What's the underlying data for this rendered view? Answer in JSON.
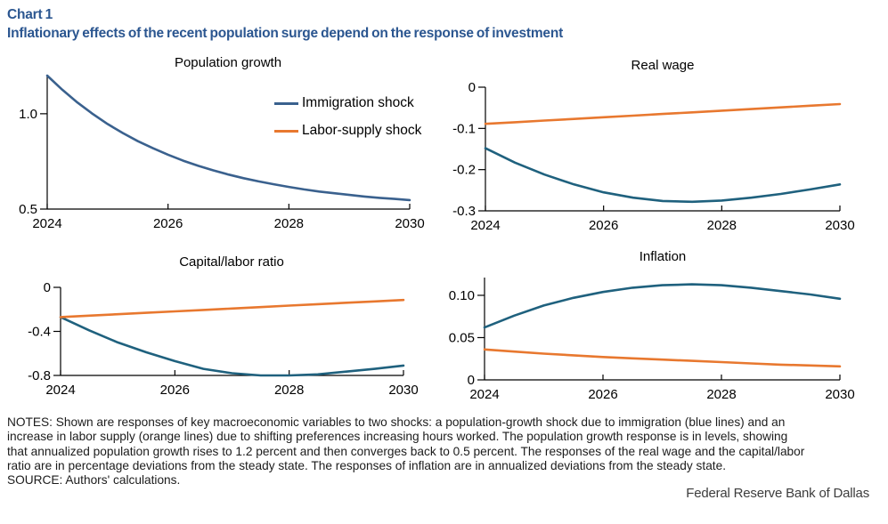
{
  "header": {
    "chart_label": "Chart 1",
    "title": "Inflationary effects of the recent population surge depend on the response of investment"
  },
  "legend": {
    "items": [
      {
        "label": "Immigration shock",
        "color": "#3a618e"
      },
      {
        "label": "Labor-supply shock",
        "color": "#e8782f"
      }
    ]
  },
  "colors": {
    "header_blue": "#2b5690",
    "immigration_blue": "#3a618e",
    "immigration_teal": "#1f617e",
    "labor_orange": "#e8782f",
    "axis_black": "#000000"
  },
  "chart_data": [
    {
      "type": "line",
      "title": "Population growth",
      "xlabel": "",
      "ylabel": "",
      "xlim": [
        2024,
        2030
      ],
      "ylim": [
        0.5,
        1.2
      ],
      "xtick_values": [
        2024,
        2026,
        2028,
        2030
      ],
      "xtick_labels": [
        "2024",
        "2026",
        "2028",
        "2030"
      ],
      "ytick_values": [
        1.0,
        0.5
      ],
      "ytick_labels": [
        "1.0",
        "0.5"
      ],
      "grid": false,
      "series": [
        {
          "name": "Immigration shock",
          "color": "#3a618e",
          "x": [
            2024,
            2024.25,
            2024.5,
            2024.75,
            2025,
            2025.25,
            2025.5,
            2025.75,
            2026,
            2026.25,
            2026.5,
            2026.75,
            2027,
            2027.25,
            2027.5,
            2027.75,
            2028,
            2028.25,
            2028.5,
            2028.75,
            2029,
            2029.25,
            2029.5,
            2029.75,
            2030
          ],
          "y": [
            1.2,
            1.126,
            1.059,
            1.0,
            0.946,
            0.899,
            0.856,
            0.819,
            0.785,
            0.754,
            0.727,
            0.703,
            0.681,
            0.662,
            0.645,
            0.63,
            0.616,
            0.603,
            0.592,
            0.583,
            0.574,
            0.566,
            0.559,
            0.553,
            0.547
          ]
        }
      ]
    },
    {
      "type": "line",
      "title": "Real wage",
      "xlabel": "",
      "ylabel": "",
      "xlim": [
        2024,
        2030
      ],
      "ylim": [
        -0.3,
        0
      ],
      "xtick_values": [
        2024,
        2026,
        2028,
        2030
      ],
      "xtick_labels": [
        "2024",
        "2026",
        "2028",
        "2030"
      ],
      "ytick_values": [
        0,
        -0.1,
        -0.2,
        -0.3
      ],
      "ytick_labels": [
        "0",
        "-0.1",
        "-0.2",
        "-0.3"
      ],
      "grid": false,
      "series": [
        {
          "name": "Immigration shock",
          "color": "#1f617e",
          "x": [
            2024,
            2024.5,
            2025,
            2025.5,
            2026,
            2026.5,
            2027,
            2027.5,
            2028,
            2028.5,
            2029,
            2029.5,
            2030
          ],
          "y": [
            -0.148,
            -0.183,
            -0.212,
            -0.236,
            -0.255,
            -0.268,
            -0.276,
            -0.278,
            -0.275,
            -0.268,
            -0.259,
            -0.248,
            -0.236
          ]
        },
        {
          "name": "Labor-supply shock",
          "color": "#e8782f",
          "x": [
            2024,
            2024.5,
            2025,
            2025.5,
            2026,
            2026.5,
            2027,
            2027.5,
            2028,
            2028.5,
            2029,
            2029.5,
            2030
          ],
          "y": [
            -0.089,
            -0.085,
            -0.081,
            -0.077,
            -0.073,
            -0.069,
            -0.065,
            -0.061,
            -0.057,
            -0.053,
            -0.049,
            -0.045,
            -0.041
          ]
        }
      ]
    },
    {
      "type": "line",
      "title": "Capital/labor ratio",
      "xlabel": "",
      "ylabel": "",
      "xlim": [
        2024,
        2030
      ],
      "ylim": [
        -0.8,
        0
      ],
      "xtick_values": [
        2024,
        2026,
        2028,
        2030
      ],
      "xtick_labels": [
        "2024",
        "2026",
        "2028",
        "2030"
      ],
      "ytick_values": [
        0,
        -0.4,
        -0.8
      ],
      "ytick_labels": [
        "0",
        "-0.4",
        "-0.8"
      ],
      "grid": false,
      "series": [
        {
          "name": "Immigration shock",
          "color": "#1f617e",
          "x": [
            2024,
            2024.5,
            2025,
            2025.5,
            2026,
            2026.5,
            2027,
            2027.5,
            2028,
            2028.5,
            2029,
            2029.5,
            2030
          ],
          "y": [
            -0.27,
            -0.39,
            -0.5,
            -0.59,
            -0.67,
            -0.74,
            -0.78,
            -0.8,
            -0.8,
            -0.79,
            -0.765,
            -0.74,
            -0.71
          ]
        },
        {
          "name": "Labor-supply shock",
          "color": "#e8782f",
          "x": [
            2024,
            2024.5,
            2025,
            2025.5,
            2026,
            2026.5,
            2027,
            2027.5,
            2028,
            2028.5,
            2029,
            2029.5,
            2030
          ],
          "y": [
            -0.27,
            -0.257,
            -0.244,
            -0.231,
            -0.218,
            -0.205,
            -0.192,
            -0.179,
            -0.166,
            -0.153,
            -0.14,
            -0.128,
            -0.115
          ]
        }
      ]
    },
    {
      "type": "line",
      "title": "Inflation",
      "xlabel": "",
      "ylabel": "",
      "xlim": [
        2024,
        2030
      ],
      "ylim": [
        0,
        0.121
      ],
      "xtick_values": [
        2024,
        2026,
        2028,
        2030
      ],
      "xtick_labels": [
        "2024",
        "2026",
        "2028",
        "2030"
      ],
      "ytick_values": [
        0.1,
        0.05,
        0
      ],
      "ytick_labels": [
        "0.10",
        "0.05",
        "0"
      ],
      "grid": false,
      "series": [
        {
          "name": "Immigration shock",
          "color": "#1f617e",
          "x": [
            2024,
            2024.5,
            2025,
            2025.5,
            2026,
            2026.5,
            2027,
            2027.5,
            2028,
            2028.5,
            2029,
            2029.5,
            2030
          ],
          "y": [
            0.062,
            0.076,
            0.088,
            0.097,
            0.104,
            0.109,
            0.112,
            0.113,
            0.112,
            0.109,
            0.105,
            0.101,
            0.096
          ]
        },
        {
          "name": "Labor-supply shock",
          "color": "#e8782f",
          "x": [
            2024,
            2024.5,
            2025,
            2025.5,
            2026,
            2026.5,
            2027,
            2027.5,
            2028,
            2028.5,
            2029,
            2029.5,
            2030
          ],
          "y": [
            0.036,
            0.0335,
            0.031,
            0.029,
            0.027,
            0.0255,
            0.024,
            0.0225,
            0.021,
            0.0195,
            0.018,
            0.017,
            0.016
          ]
        }
      ]
    }
  ],
  "notes": {
    "lines": [
      "NOTES: Shown are responses of key macroeconomic variables to two shocks: a population-growth shock due to immigration (blue lines) and an",
      "increase in labor supply (orange lines) due to shifting preferences increasing hours worked. The population growth response is in levels, showing",
      "that annualized population growth rises to 1.2 percent and then converges back to 0.5 percent. The responses of the real wage and the capital/labor",
      "ratio are in percentage deviations from the steady state. The responses of inflation are in annualized deviations from the steady state."
    ],
    "source": "SOURCE: Authors' calculations."
  },
  "attribution": "Federal Reserve Bank of Dallas"
}
